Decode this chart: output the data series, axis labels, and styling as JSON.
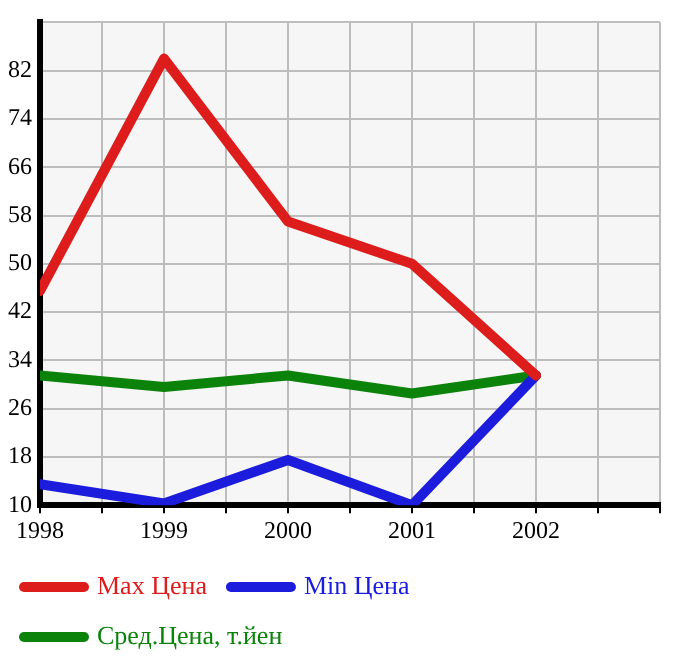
{
  "chart_data": {
    "type": "line",
    "x": [
      1998,
      1999,
      2000,
      2001,
      2002
    ],
    "series": [
      {
        "name": "Max Цена",
        "color": "#dd1c1c",
        "values": [
          45.5,
          84,
          57,
          50,
          31.5
        ]
      },
      {
        "name": "Min Цена",
        "color": "#1c1cdd",
        "values": [
          13.5,
          10.3,
          17.5,
          10,
          31.5
        ]
      },
      {
        "name": "Сред.Цена, т.йен",
        "color": "#0b830b",
        "values": [
          31.5,
          29.6,
          31.5,
          28.5,
          31.5
        ]
      }
    ],
    "xlim": [
      1998,
      2003
    ],
    "xticks": [
      1998,
      {
        "value": 1998.5,
        "label": null
      },
      1999,
      {
        "value": 1999.5,
        "label": null
      },
      2000,
      {
        "value": 2000.5,
        "label": null
      },
      2001,
      {
        "value": 2001.5,
        "label": null
      },
      2002,
      {
        "value": 2002.5,
        "label": null
      },
      {
        "value": 2003,
        "label": null
      }
    ],
    "ylim": [
      10,
      90
    ],
    "yticks": [
      10,
      18,
      26,
      34,
      42,
      50,
      58,
      66,
      74,
      82,
      {
        "value": 90,
        "label": null
      }
    ],
    "grid": true,
    "legend": "bottom",
    "marker": "none",
    "line_style": "solid"
  }
}
